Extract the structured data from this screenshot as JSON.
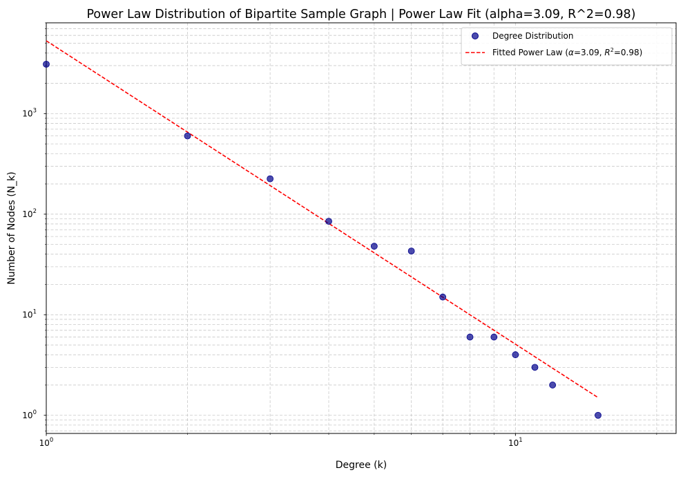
{
  "chart_data": {
    "type": "scatter",
    "title": "Power Law Distribution of Bipartite Sample Graph | Power Law Fit (alpha=3.09, R^2=0.98)",
    "xlabel": "Degree (k)",
    "ylabel": "Number of Nodes (N_k)",
    "xscale": "log",
    "yscale": "log",
    "xlim": [
      1,
      22
    ],
    "ylim": [
      0.66,
      8000
    ],
    "grid": true,
    "legend_position": "top-right",
    "x_ticks": [
      {
        "value": 1,
        "base": "10",
        "exp": "0"
      },
      {
        "value": 10,
        "base": "10",
        "exp": "1"
      }
    ],
    "y_ticks": [
      {
        "value": 1,
        "base": "10",
        "exp": "0"
      },
      {
        "value": 10,
        "base": "10",
        "exp": "1"
      },
      {
        "value": 100,
        "base": "10",
        "exp": "2"
      },
      {
        "value": 1000,
        "base": "10",
        "exp": "3"
      }
    ],
    "series": [
      {
        "name": "Degree Distribution",
        "kind": "scatter",
        "color": "#00008B",
        "points": [
          {
            "x": 1,
            "y": 3100
          },
          {
            "x": 2,
            "y": 600
          },
          {
            "x": 3,
            "y": 225
          },
          {
            "x": 4,
            "y": 85
          },
          {
            "x": 5,
            "y": 48
          },
          {
            "x": 6,
            "y": 43
          },
          {
            "x": 7,
            "y": 15
          },
          {
            "x": 8,
            "y": 6
          },
          {
            "x": 9,
            "y": 6
          },
          {
            "x": 10,
            "y": 4
          },
          {
            "x": 11,
            "y": 3
          },
          {
            "x": 12,
            "y": 2
          },
          {
            "x": 15,
            "y": 1
          }
        ]
      },
      {
        "name": "Fitted Power Law (α=3.09, R²=0.98)",
        "legend_parts": [
          "Fitted Power Law (",
          "α",
          "=3.09, ",
          "R",
          "2",
          "=0.98)"
        ],
        "kind": "line",
        "style": "dashed",
        "color": "#FF0000",
        "alpha": 3.09,
        "r_squared": 0.98,
        "points": [
          {
            "x": 1,
            "y": 5300
          },
          {
            "x": 15,
            "y": 1.5
          }
        ]
      }
    ]
  }
}
